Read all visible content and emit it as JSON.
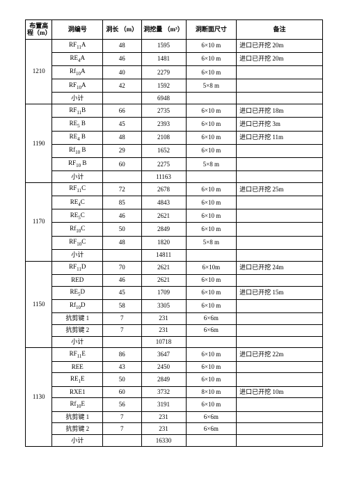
{
  "columns": [
    "布置高\n程（m）",
    "洞编号",
    "洞长\n（m）",
    "洞挖量\n（m³）",
    "洞断面尺寸",
    "备注"
  ],
  "groups": [
    {
      "elev": "1210",
      "rows": [
        {
          "code": "RF₁₁A",
          "len": "48",
          "vol": "1595",
          "sec": "6×10 m",
          "rem": "进口已开挖 20m"
        },
        {
          "code": "RE₄A",
          "len": "46",
          "vol": "1481",
          "sec": "6×10 m",
          "rem": "进口已开挖 20m"
        },
        {
          "code": "Rf₁₀A",
          "len": "40",
          "vol": "2279",
          "sec": "6×10 m",
          "rem": ""
        },
        {
          "code": "RF₁₀A",
          "len": "42",
          "vol": "1592",
          "sec": "5×8 m",
          "rem": ""
        },
        {
          "code": "小计",
          "len": "",
          "vol": "6948",
          "sec": "",
          "rem": ""
        }
      ]
    },
    {
      "elev": "1190",
      "rows": [
        {
          "code": "RF₁₁B",
          "len": "66",
          "vol": "2735",
          "sec": "6×10 m",
          "rem": "进口已开挖 18m"
        },
        {
          "code": "RE₅ B",
          "len": "45",
          "vol": "2393",
          "sec": "6×10 m",
          "rem": "进口已开挖 3m"
        },
        {
          "code": "RE₄ B",
          "len": "48",
          "vol": "2108",
          "sec": "6×10 m",
          "rem": "进口已开挖 11m"
        },
        {
          "code": "Rf₁₀ B",
          "len": "29",
          "vol": "1652",
          "sec": "6×10 m",
          "rem": ""
        },
        {
          "code": "RF₁₀ B",
          "len": "60",
          "vol": "2275",
          "sec": "5×8 m",
          "rem": ""
        },
        {
          "code": "小计",
          "len": "",
          "vol": "11163",
          "sec": "",
          "rem": ""
        }
      ]
    },
    {
      "elev": "1170",
      "rows": [
        {
          "code": "RF₁₁C",
          "len": "72",
          "vol": "2678",
          "sec": "6×10 m",
          "rem": "进口已开挖 25m"
        },
        {
          "code": "RE₄C",
          "len": "85",
          "vol": "4843",
          "sec": "6×10 m",
          "rem": ""
        },
        {
          "code": "RE₅C",
          "len": "46",
          "vol": "2621",
          "sec": "6×10 m",
          "rem": ""
        },
        {
          "code": "Rf₁₀C",
          "len": "50",
          "vol": "2849",
          "sec": "6×10 m",
          "rem": ""
        },
        {
          "code": "RF₁₀C",
          "len": "48",
          "vol": "1820",
          "sec": "5×8 m",
          "rem": ""
        },
        {
          "code": "小计",
          "len": "",
          "vol": "14811",
          "sec": "",
          "rem": ""
        }
      ]
    },
    {
      "elev": "1150",
      "rows": [
        {
          "code": "RF₁₁D",
          "len": "70",
          "vol": "2621",
          "sec": "6×10m",
          "rem": "进口已开挖 24m"
        },
        {
          "code": "RED",
          "len": "46",
          "vol": "2621",
          "sec": "6×10 m",
          "rem": ""
        },
        {
          "code": "RE₅D",
          "len": "45",
          "vol": "1709",
          "sec": "6×10 m",
          "rem": "进口已开挖 15m"
        },
        {
          "code": "Rf₁₀D",
          "len": "58",
          "vol": "3305",
          "sec": "6×10 m",
          "rem": ""
        },
        {
          "code": "抗剪键 1",
          "len": "7",
          "vol": "231",
          "sec": "6×6m",
          "rem": ""
        },
        {
          "code": "抗剪键 2",
          "len": "7",
          "vol": "231",
          "sec": "6×6m",
          "rem": ""
        },
        {
          "code": "小计",
          "len": "",
          "vol": "10718",
          "sec": "",
          "rem": ""
        }
      ]
    },
    {
      "elev": "1130",
      "rows": [
        {
          "code": "RF₁₁E",
          "len": "86",
          "vol": "3647",
          "sec": "6×10 m",
          "rem": "进口已开挖 22m"
        },
        {
          "code": "REE",
          "len": "43",
          "vol": "2450",
          "sec": "6×10 m",
          "rem": ""
        },
        {
          "code": "RE₁E",
          "len": "50",
          "vol": "2849",
          "sec": "6×10 m",
          "rem": ""
        },
        {
          "code": "RXE1",
          "len": "60",
          "vol": "3732",
          "sec": "8×10 m",
          "rem": "进口已开挖 10m"
        },
        {
          "code": "Rf₁₀E",
          "len": "56",
          "vol": "3191",
          "sec": "6×10 m",
          "rem": ""
        },
        {
          "code": "抗剪键 1",
          "len": "7",
          "vol": "231",
          "sec": "6×6m",
          "rem": ""
        },
        {
          "code": "抗剪键 2",
          "len": "7",
          "vol": "231",
          "sec": "6×6m",
          "rem": ""
        },
        {
          "code": "小计",
          "len": "",
          "vol": "16330",
          "sec": "",
          "rem": ""
        }
      ]
    }
  ]
}
